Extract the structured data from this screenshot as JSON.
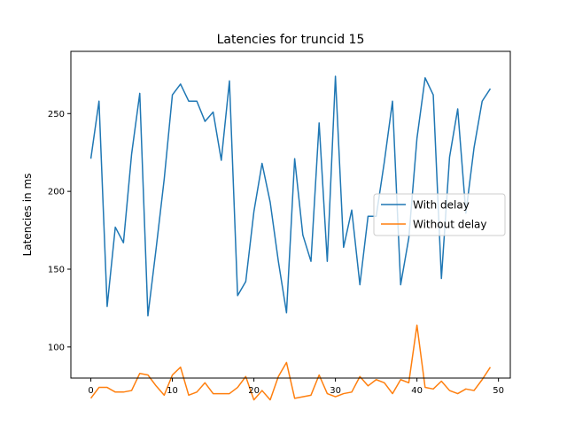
{
  "chart_data": {
    "type": "line",
    "title": "Latencies for truncid 15",
    "xlabel": "",
    "ylabel": "Latencies in ms",
    "xlim": [
      -2.45,
      51.45
    ],
    "ylim": [
      80,
      290
    ],
    "xticks": [
      0,
      10,
      20,
      30,
      40,
      50
    ],
    "yticks": [
      100,
      150,
      200,
      250
    ],
    "grid": false,
    "legend_position": "center-right",
    "x": [
      0,
      1,
      2,
      3,
      4,
      5,
      6,
      7,
      8,
      9,
      10,
      11,
      12,
      13,
      14,
      15,
      16,
      17,
      18,
      19,
      20,
      21,
      22,
      23,
      24,
      25,
      26,
      27,
      28,
      29,
      30,
      31,
      32,
      33,
      34,
      35,
      36,
      37,
      38,
      39,
      40,
      41,
      42,
      43,
      44,
      45,
      46,
      47,
      48,
      49
    ],
    "series": [
      {
        "name": "With delay",
        "color": "#1f77b4",
        "values": [
          221,
          258,
          126,
          177,
          167,
          224,
          263,
          120,
          163,
          208,
          262,
          269,
          258,
          258,
          245,
          251,
          220,
          271,
          133,
          142,
          187,
          218,
          193,
          155,
          122,
          221,
          172,
          155,
          244,
          155,
          274,
          164,
          188,
          140,
          184,
          184,
          219,
          258,
          140,
          170,
          234,
          273,
          262,
          144,
          222,
          253,
          186,
          228,
          258,
          266
        ]
      },
      {
        "name": "Without delay",
        "color": "#ff7f0e",
        "values": [
          67,
          74,
          74,
          71,
          71,
          72,
          83,
          82,
          75,
          69,
          82,
          87,
          69,
          71,
          77,
          70,
          70,
          70,
          74,
          81,
          66,
          72,
          66,
          81,
          90,
          67,
          68,
          69,
          82,
          70,
          68,
          70,
          71,
          81,
          75,
          79,
          77,
          70,
          79,
          77,
          114,
          74,
          73,
          78,
          72,
          70,
          73,
          72,
          79,
          87
        ]
      }
    ]
  }
}
